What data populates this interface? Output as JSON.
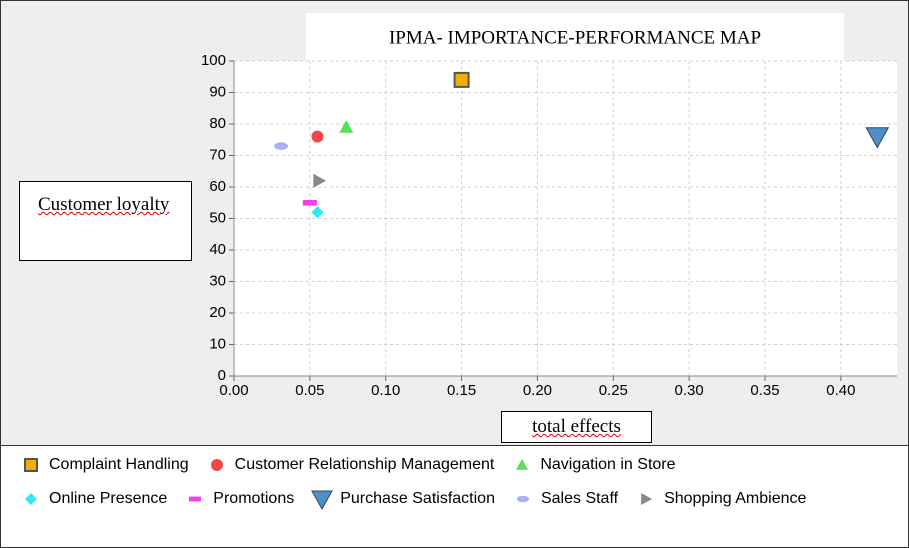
{
  "chart_data": {
    "type": "scatter",
    "title": "IPMA- IMPORTANCE-PERFORMANCE MAP",
    "x_label": "total effects",
    "y_label": "Customer loyalty",
    "xlim": [
      0,
      0.437
    ],
    "ylim": [
      0,
      100
    ],
    "xticks": [
      {
        "value": 0,
        "label": "0.00"
      },
      0.05,
      {
        "value": 0.1,
        "label": "0.10"
      },
      0.15,
      {
        "value": 0.2,
        "label": "0.20"
      },
      0.25,
      {
        "value": 0.3,
        "label": "0.30"
      },
      0.35,
      {
        "value": 0.4,
        "label": "0.40"
      }
    ],
    "yticks": [
      0,
      10,
      20,
      30,
      40,
      50,
      60,
      70,
      80,
      90,
      100
    ],
    "grid": true,
    "series": [
      {
        "name": "Complaint Handling",
        "color": "#f0b000",
        "marker": "square",
        "x": [
          0.15
        ],
        "values": [
          94
        ]
      },
      {
        "name": "Customer Relationship Management",
        "color": "#f04848",
        "marker": "circle",
        "x": [
          0.055
        ],
        "values": [
          76
        ]
      },
      {
        "name": "Navigation in Store",
        "color": "#55e055",
        "marker": "triangle-up",
        "x": [
          0.074
        ],
        "values": [
          79
        ]
      },
      {
        "name": "Online Presence",
        "color": "#33e8f0",
        "marker": "diamond",
        "x": [
          0.055
        ],
        "values": [
          52
        ]
      },
      {
        "name": "Promotions",
        "color": "#f040f0",
        "marker": "bar",
        "x": [
          0.05
        ],
        "values": [
          55
        ]
      },
      {
        "name": "Purchase Satisfaction",
        "color": "#4f8fc8",
        "marker": "triangle-down",
        "x": [
          0.424
        ],
        "values": [
          76
        ]
      },
      {
        "name": "Sales Staff",
        "color": "#aab0f0",
        "marker": "ellipse",
        "x": [
          0.031
        ],
        "values": [
          73
        ]
      },
      {
        "name": "Shopping Ambience",
        "color": "#888888",
        "marker": "triangle-right",
        "x": [
          0.056
        ],
        "values": [
          62
        ]
      }
    ]
  }
}
